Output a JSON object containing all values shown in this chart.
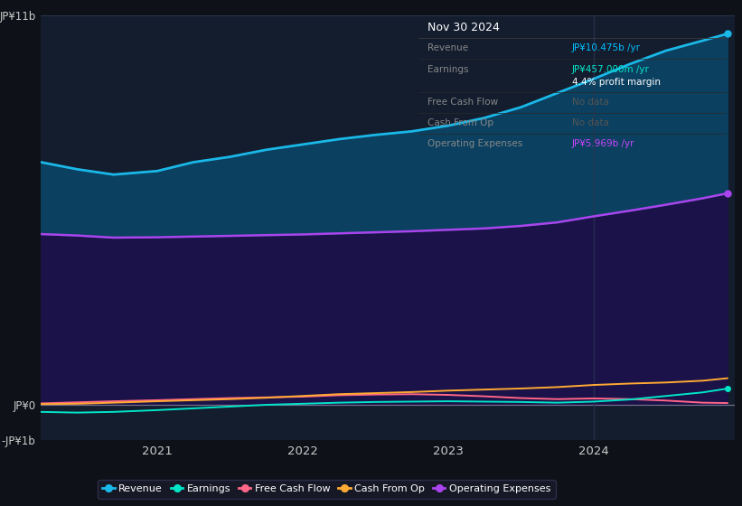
{
  "background_color": "#0e1117",
  "plot_bg_color": "#0e1117",
  "chart_area_color": "#131d2e",
  "title": "Nov 30 2024",
  "info_box": {
    "rows": [
      {
        "label": "Revenue",
        "value": "JP¥10.475b /yr",
        "value_color": "#00bfff",
        "margin": null
      },
      {
        "label": "Earnings",
        "value": "JP¥457.000m /yr",
        "value_color": "#00e5c8",
        "margin": "4.4% profit margin"
      },
      {
        "label": "Free Cash Flow",
        "value": "No data",
        "value_color": "#555555",
        "margin": null
      },
      {
        "label": "Cash From Op",
        "value": "No data",
        "value_color": "#555555",
        "margin": null
      },
      {
        "label": "Operating Expenses",
        "value": "JP¥5.969b /yr",
        "value_color": "#cc44ff",
        "margin": null
      }
    ]
  },
  "ylim": [
    -1000000000.0,
    11000000000.0
  ],
  "ytick_labels": [
    "-JP¥1b",
    "JP¥0",
    "JP¥11b"
  ],
  "ytick_values": [
    -1000000000.0,
    0,
    11000000000.0
  ],
  "xlim_start": 2020.2,
  "xlim_end": 2024.97,
  "xticks": [
    2021,
    2022,
    2023,
    2024
  ],
  "series": {
    "revenue": {
      "color": "#1ab8e8",
      "label": "Revenue",
      "x": [
        2020.2,
        2020.45,
        2020.7,
        2021.0,
        2021.25,
        2021.5,
        2021.75,
        2022.0,
        2022.25,
        2022.5,
        2022.75,
        2023.0,
        2023.25,
        2023.5,
        2023.75,
        2024.0,
        2024.25,
        2024.5,
        2024.75,
        2024.92
      ],
      "y": [
        6850000000.0,
        6650000000.0,
        6500000000.0,
        6600000000.0,
        6850000000.0,
        7000000000.0,
        7200000000.0,
        7350000000.0,
        7500000000.0,
        7620000000.0,
        7720000000.0,
        7880000000.0,
        8100000000.0,
        8400000000.0,
        8800000000.0,
        9200000000.0,
        9620000000.0,
        10000000000.0,
        10280000000.0,
        10475000000.0
      ]
    },
    "operating_expenses": {
      "color": "#aa44ee",
      "label": "Operating Expenses",
      "x": [
        2020.2,
        2020.45,
        2020.7,
        2021.0,
        2021.25,
        2021.5,
        2021.75,
        2022.0,
        2022.25,
        2022.5,
        2022.75,
        2023.0,
        2023.25,
        2023.5,
        2023.75,
        2024.0,
        2024.25,
        2024.5,
        2024.75,
        2024.92
      ],
      "y": [
        4820000000.0,
        4780000000.0,
        4720000000.0,
        4730000000.0,
        4750000000.0,
        4770000000.0,
        4790000000.0,
        4810000000.0,
        4840000000.0,
        4870000000.0,
        4900000000.0,
        4940000000.0,
        4980000000.0,
        5050000000.0,
        5150000000.0,
        5320000000.0,
        5480000000.0,
        5650000000.0,
        5830000000.0,
        5969000000.0
      ]
    },
    "earnings": {
      "color": "#00e5c8",
      "label": "Earnings",
      "x": [
        2020.2,
        2020.45,
        2020.7,
        2021.0,
        2021.25,
        2021.5,
        2021.75,
        2022.0,
        2022.25,
        2022.5,
        2022.75,
        2023.0,
        2023.25,
        2023.5,
        2023.75,
        2024.0,
        2024.25,
        2024.5,
        2024.75,
        2024.92
      ],
      "y": [
        -200000000.0,
        -220000000.0,
        -200000000.0,
        -150000000.0,
        -100000000.0,
        -50000000.0,
        0.0,
        30000000.0,
        60000000.0,
        80000000.0,
        90000000.0,
        100000000.0,
        90000000.0,
        80000000.0,
        60000000.0,
        90000000.0,
        150000000.0,
        250000000.0,
        350000000.0,
        457000000.0
      ]
    },
    "free_cash_flow": {
      "color": "#ff6688",
      "label": "Free Cash Flow",
      "x": [
        2020.2,
        2020.45,
        2020.7,
        2021.0,
        2021.25,
        2021.5,
        2021.75,
        2022.0,
        2022.25,
        2022.5,
        2022.75,
        2023.0,
        2023.25,
        2023.5,
        2023.75,
        2024.0,
        2024.25,
        2024.5,
        2024.75,
        2024.92
      ],
      "y": [
        40000000.0,
        70000000.0,
        100000000.0,
        130000000.0,
        160000000.0,
        190000000.0,
        210000000.0,
        230000000.0,
        270000000.0,
        290000000.0,
        300000000.0,
        280000000.0,
        240000000.0,
        190000000.0,
        160000000.0,
        180000000.0,
        160000000.0,
        120000000.0,
        60000000.0,
        50000000.0
      ]
    },
    "cash_from_op": {
      "color": "#ffaa33",
      "label": "Cash From Op",
      "x": [
        2020.2,
        2020.45,
        2020.7,
        2021.0,
        2021.25,
        2021.5,
        2021.75,
        2022.0,
        2022.25,
        2022.5,
        2022.75,
        2023.0,
        2023.25,
        2023.5,
        2023.75,
        2024.0,
        2024.25,
        2024.5,
        2024.75,
        2024.92
      ],
      "y": [
        20000000.0,
        30000000.0,
        60000000.0,
        100000000.0,
        130000000.0,
        160000000.0,
        200000000.0,
        250000000.0,
        300000000.0,
        330000000.0,
        360000000.0,
        400000000.0,
        430000000.0,
        460000000.0,
        500000000.0,
        560000000.0,
        600000000.0,
        630000000.0,
        680000000.0,
        750000000.0
      ]
    }
  },
  "legend_items": [
    {
      "label": "Revenue",
      "color": "#1ab8e8"
    },
    {
      "label": "Earnings",
      "color": "#00e5c8"
    },
    {
      "label": "Free Cash Flow",
      "color": "#ff6688"
    },
    {
      "label": "Cash From Op",
      "color": "#ffaa33"
    },
    {
      "label": "Operating Expenses",
      "color": "#aa44ee"
    }
  ],
  "grid_color": "#2a3550",
  "text_color": "#cccccc",
  "zero_line_color": "#cccccc",
  "vline_x": 2024.0
}
